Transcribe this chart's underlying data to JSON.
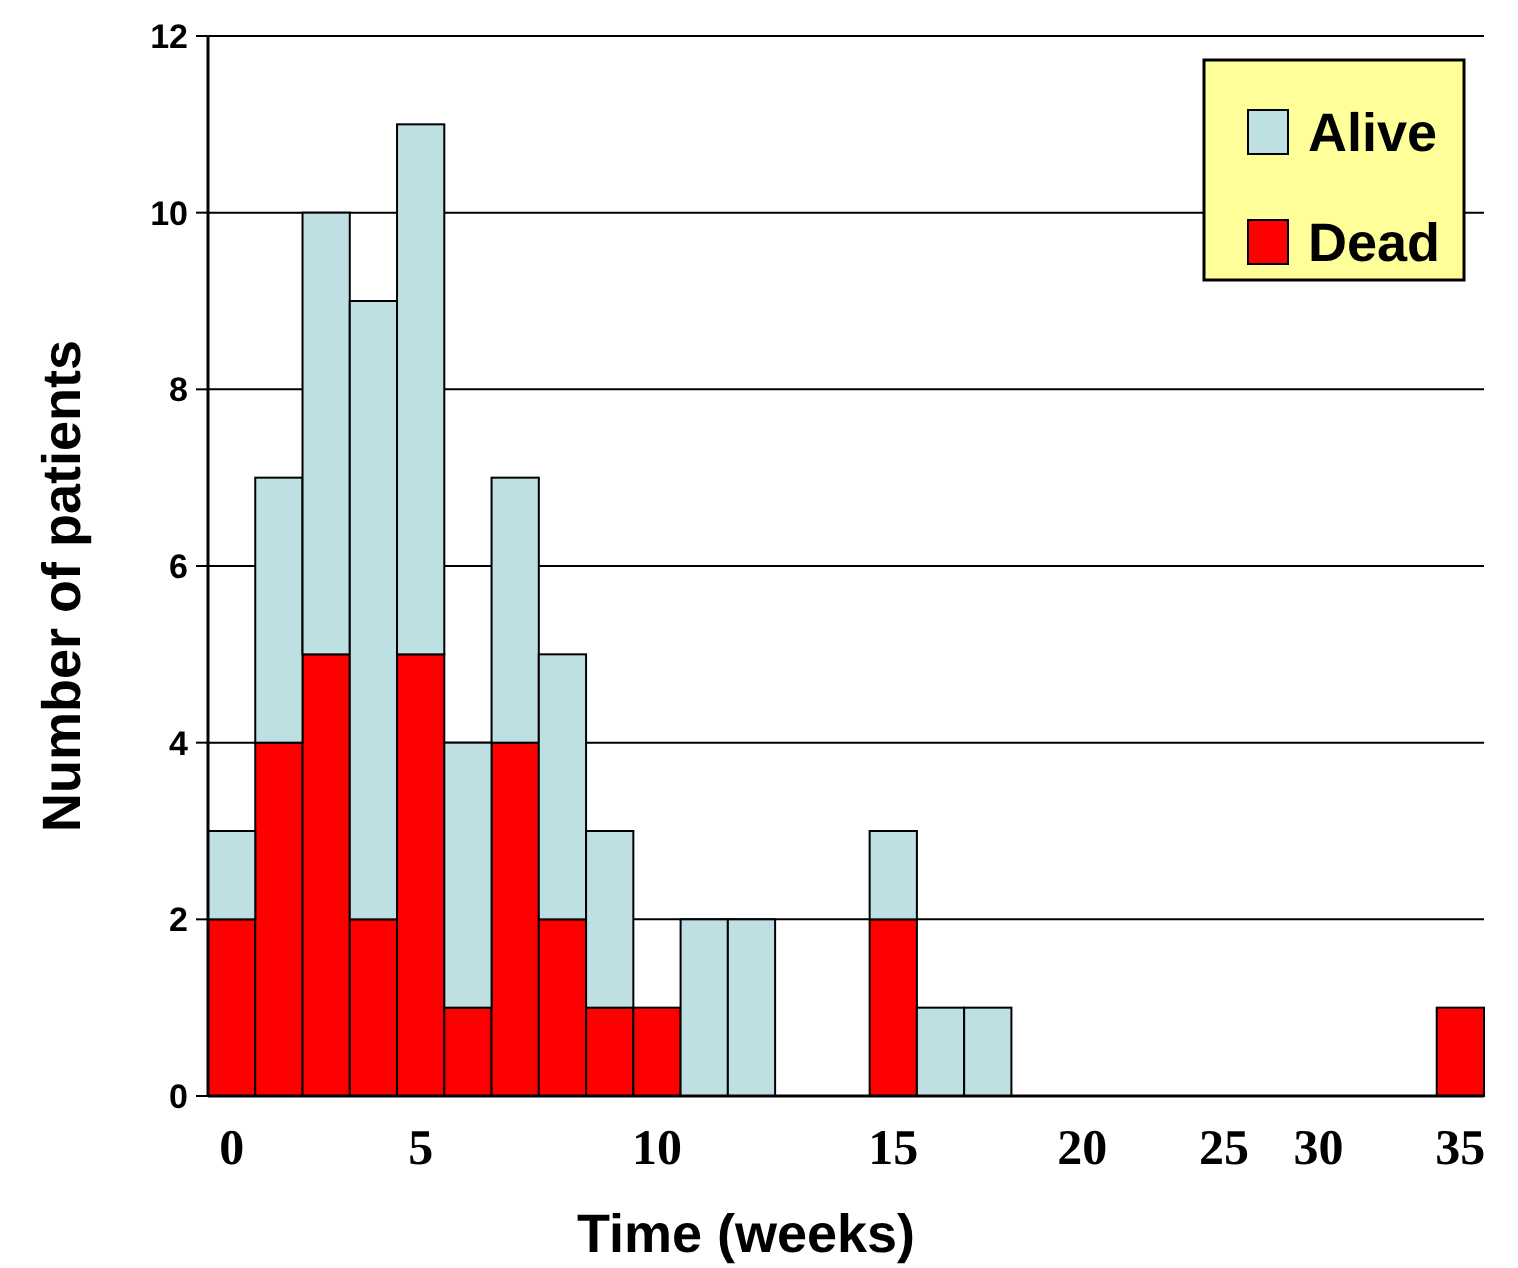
{
  "chart_data": {
    "type": "bar",
    "stacked": true,
    "xlabel": "Time (weeks)",
    "ylabel": "Number of patients",
    "categories": [
      "0",
      null,
      null,
      null,
      "5",
      null,
      null,
      null,
      null,
      "10",
      null,
      null,
      null,
      null,
      "15",
      null,
      null,
      null,
      "20",
      null,
      null,
      "25",
      null,
      "30",
      null,
      null,
      "35"
    ],
    "series": [
      {
        "name": "Dead",
        "color": "#ff0000",
        "values": [
          2,
          4,
          5,
          2,
          5,
          1,
          4,
          2,
          1,
          1,
          0,
          0,
          0,
          0,
          2,
          0,
          0,
          0,
          0,
          0,
          0,
          0,
          0,
          0,
          0,
          0,
          1
        ]
      },
      {
        "name": "Alive",
        "color": "#bfe0e3",
        "values": [
          1,
          3,
          5,
          7,
          6,
          3,
          3,
          3,
          2,
          0,
          2,
          2,
          0,
          0,
          1,
          1,
          1,
          0,
          0,
          0,
          0,
          0,
          0,
          0,
          0,
          0,
          0
        ]
      }
    ],
    "ylim": [
      0,
      12
    ],
    "yticks": [
      0,
      2,
      4,
      6,
      8,
      10,
      12
    ],
    "grid": "y",
    "legend": "top right"
  }
}
